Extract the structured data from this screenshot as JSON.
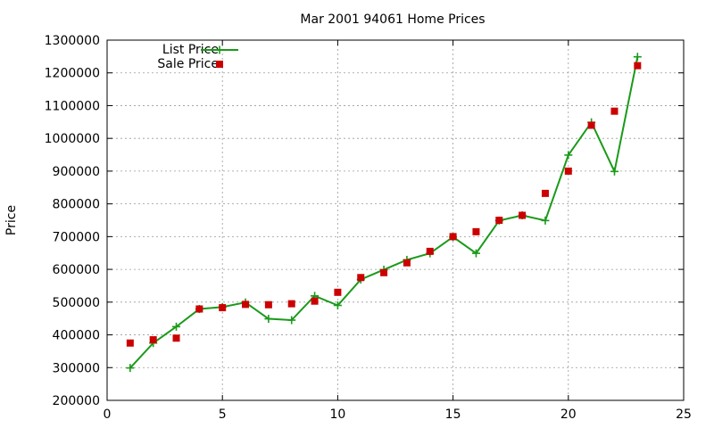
{
  "chart_data": {
    "type": "line",
    "title": "Mar 2001 94061 Home Prices",
    "xlabel": "",
    "ylabel": "Price",
    "xlim": [
      0,
      25
    ],
    "ylim": [
      200000,
      1300000
    ],
    "x_ticks": [
      0,
      5,
      10,
      15,
      20,
      25
    ],
    "y_ticks": [
      200000,
      300000,
      400000,
      500000,
      600000,
      700000,
      800000,
      900000,
      1000000,
      1100000,
      1200000,
      1300000
    ],
    "grid": true,
    "legend_position": "top-left",
    "x": [
      1,
      2,
      3,
      4,
      5,
      6,
      7,
      8,
      9,
      10,
      11,
      12,
      13,
      14,
      15,
      16,
      17,
      18,
      19,
      20,
      21,
      22,
      23
    ],
    "series": [
      {
        "name": "List Price",
        "style": "line-plus",
        "color": "#1a9a1a",
        "values": [
          299000,
          375000,
          425000,
          479000,
          485000,
          499000,
          449000,
          445000,
          519000,
          490000,
          569000,
          599000,
          629000,
          649000,
          699000,
          649000,
          749000,
          765000,
          749000,
          949000,
          1049000,
          899000,
          1249000
        ]
      },
      {
        "name": "Sale Price",
        "style": "square",
        "color": "#cc0000",
        "values": [
          375000,
          385000,
          390000,
          479000,
          483000,
          493000,
          492000,
          495000,
          503000,
          530000,
          575000,
          590000,
          620000,
          655000,
          700000,
          715000,
          750000,
          765000,
          832000,
          900000,
          1040000,
          1083000,
          1222000
        ]
      }
    ]
  }
}
